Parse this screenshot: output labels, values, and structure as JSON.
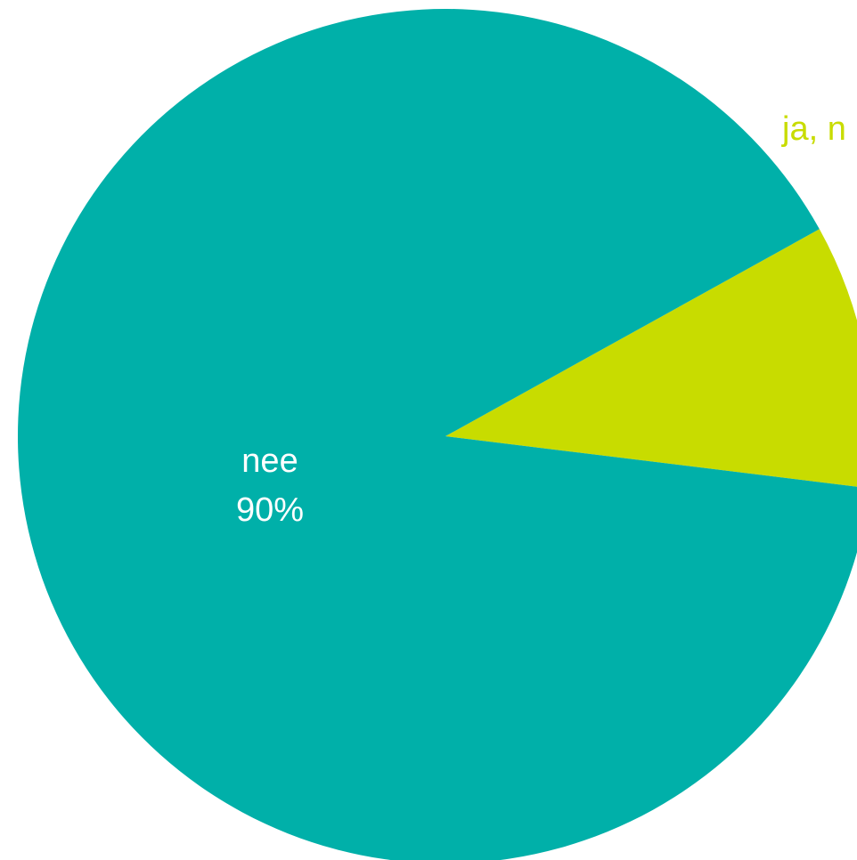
{
  "chart_data": {
    "type": "pie",
    "slices": [
      {
        "label": "nee",
        "value_text": "90%",
        "value": 90,
        "color": "#00b0a9",
        "label_color": "#ffffff"
      },
      {
        "label": "ja, n",
        "value_text": "",
        "value": 10,
        "color": "#c8dc00",
        "label_color": "#c8dc00"
      }
    ],
    "start_angle_deg": 61,
    "direction": "clockwise",
    "legend": "none"
  }
}
